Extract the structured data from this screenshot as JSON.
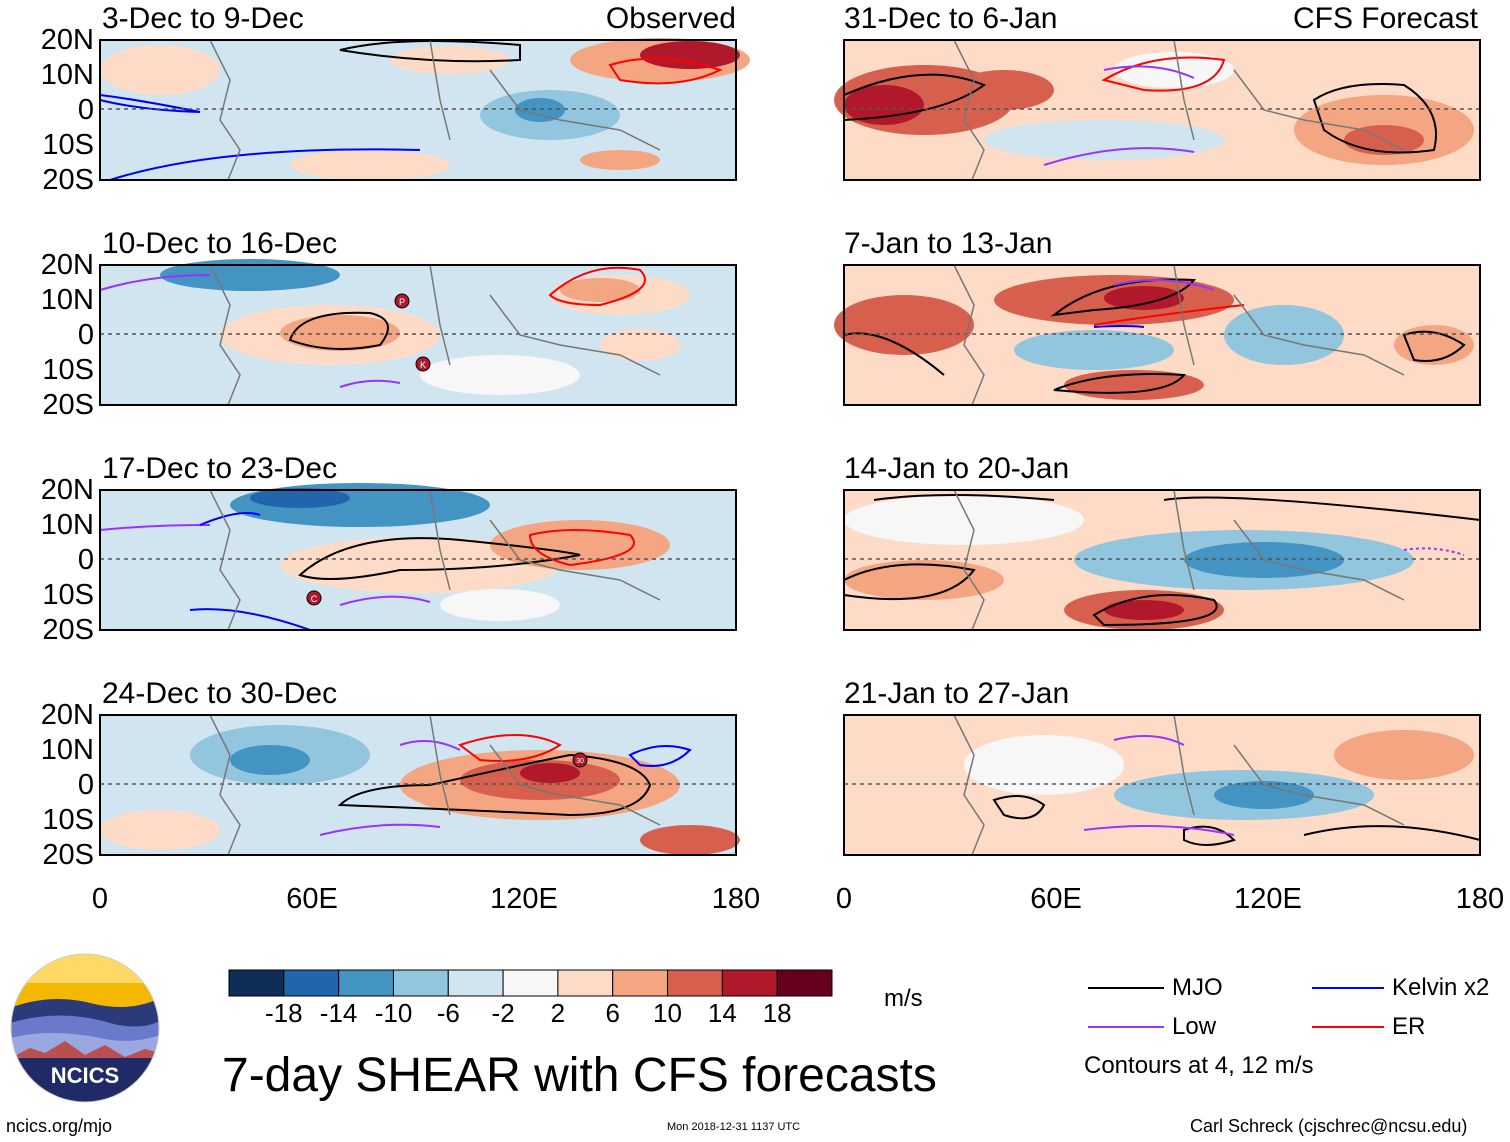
{
  "panels": {
    "observed": [
      {
        "title": "3-Dec to 9-Dec",
        "label": "Observed",
        "storms": []
      },
      {
        "title": "10-Dec to 16-Dec",
        "label": "",
        "storms": [
          "P",
          "K"
        ]
      },
      {
        "title": "17-Dec to 23-Dec",
        "label": "",
        "storms": [
          "C"
        ]
      },
      {
        "title": "24-Dec to 30-Dec",
        "label": "",
        "storms": [
          "30"
        ]
      }
    ],
    "forecast": [
      {
        "title": "31-Dec to 6-Jan",
        "label": "CFS Forecast"
      },
      {
        "title": "7-Jan to 13-Jan",
        "label": ""
      },
      {
        "title": "14-Jan to 20-Jan",
        "label": ""
      },
      {
        "title": "21-Jan to 27-Jan",
        "label": ""
      }
    ]
  },
  "axes": {
    "lat_labels": [
      "20N",
      "10N",
      "0",
      "10S",
      "20S"
    ],
    "lon_labels": [
      "0",
      "60E",
      "120E",
      "180"
    ]
  },
  "colorbar": {
    "ticks": [
      "-18",
      "-14",
      "-10",
      "-6",
      "-2",
      "2",
      "6",
      "10",
      "14",
      "18"
    ],
    "colors": [
      "#0f2d57",
      "#2166ac",
      "#4393c3",
      "#92c5de",
      "#d1e5f0",
      "#f7f7f7",
      "#fddbc7",
      "#f4a582",
      "#d6604d",
      "#b2182b",
      "#67001f"
    ],
    "units": "m/s"
  },
  "legend": {
    "items": [
      {
        "label": "MJO",
        "color": "#000000"
      },
      {
        "label": "Kelvin x2",
        "color": "#0000ff"
      },
      {
        "label": "Low",
        "color": "#9933ff"
      },
      {
        "label": "ER",
        "color": "#ff0000"
      }
    ],
    "note": "Contours at 4, 12 m/s"
  },
  "title": "7-day SHEAR with CFS forecasts",
  "logo_text": "NCICS",
  "footer": {
    "left": "ncics.org/mjo",
    "center": "Mon 2018-12-31 1137 UTC",
    "right": "Carl Schreck (cjschrec@ncsu.edu)"
  }
}
